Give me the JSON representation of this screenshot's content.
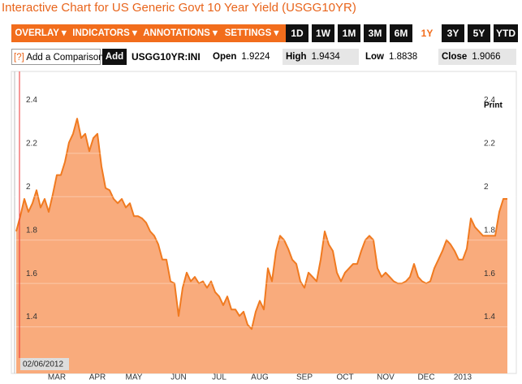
{
  "header": {
    "title": "Interactive Chart for US Generic Govt 10 Year Yield (USGG10YR)"
  },
  "toolbar": {
    "menus": [
      "OVERLAY ▾",
      "INDICATORS ▾",
      "ANNOTATIONS ▾",
      "SETTINGS ▾"
    ],
    "ranges": [
      "1D",
      "1W",
      "1M",
      "3M",
      "6M",
      "1Y",
      "3Y",
      "5Y",
      "YTD"
    ],
    "selected_range": "1Y"
  },
  "comparison": {
    "help": "[?]",
    "placeholder": "Add a Comparison",
    "button": "Add",
    "ticker": "USGG10YR:INI"
  },
  "stats": [
    {
      "label": "Open",
      "value": 1.9224
    },
    {
      "label": "High",
      "value": 1.9434
    },
    {
      "label": "Low",
      "value": 1.8838
    },
    {
      "label": "Close",
      "value": 1.9066
    }
  ],
  "chart_data": {
    "type": "area",
    "print": "Print",
    "start_date": "02/06/2012",
    "color": "#f07a20",
    "fill": "#f9ab7c",
    "grid": true,
    "ylim": [
      1.23,
      2.57
    ],
    "yticks": [
      1.4,
      1.6,
      1.8,
      2,
      2.2,
      2.4
    ],
    "categories": [
      null,
      null,
      null,
      null,
      null,
      null,
      null,
      null,
      null,
      null,
      "MAR",
      null,
      null,
      null,
      null,
      null,
      null,
      null,
      null,
      null,
      "APR",
      null,
      null,
      null,
      null,
      null,
      null,
      null,
      null,
      "MAY",
      null,
      null,
      null,
      null,
      null,
      null,
      null,
      null,
      null,
      null,
      "JUN",
      null,
      null,
      null,
      null,
      null,
      null,
      null,
      null,
      null,
      "JUL",
      null,
      null,
      null,
      null,
      null,
      null,
      null,
      null,
      null,
      "AUG",
      null,
      null,
      null,
      null,
      null,
      null,
      null,
      null,
      null,
      null,
      "SEP",
      null,
      null,
      null,
      null,
      null,
      null,
      null,
      null,
      null,
      "OCT",
      null,
      null,
      null,
      null,
      null,
      null,
      null,
      null,
      null,
      "NOV",
      null,
      null,
      null,
      null,
      null,
      null,
      null,
      null,
      null,
      "DEC",
      null,
      null,
      null,
      null,
      null,
      null,
      null,
      null,
      "2013",
      null,
      null,
      null,
      null,
      null,
      null,
      null,
      null,
      null,
      null,
      null
    ],
    "values": [
      1.84,
      1.91,
      1.99,
      1.93,
      1.97,
      2.03,
      1.95,
      1.99,
      1.93,
      2.01,
      2.1,
      2.1,
      2.16,
      2.25,
      2.29,
      2.36,
      2.27,
      2.29,
      2.21,
      2.27,
      2.29,
      2.14,
      2.04,
      2.03,
      1.99,
      1.97,
      1.99,
      1.95,
      1.97,
      1.91,
      1.91,
      1.9,
      1.88,
      1.84,
      1.82,
      1.78,
      1.71,
      1.71,
      1.61,
      1.6,
      1.45,
      1.58,
      1.65,
      1.61,
      1.63,
      1.6,
      1.61,
      1.58,
      1.61,
      1.56,
      1.54,
      1.5,
      1.54,
      1.48,
      1.48,
      1.45,
      1.47,
      1.41,
      1.39,
      1.47,
      1.52,
      1.48,
      1.67,
      1.61,
      1.75,
      1.82,
      1.8,
      1.76,
      1.71,
      1.69,
      1.61,
      1.58,
      1.65,
      1.63,
      1.61,
      1.71,
      1.84,
      1.78,
      1.75,
      1.65,
      1.61,
      1.65,
      1.67,
      1.69,
      1.69,
      1.75,
      1.8,
      1.82,
      1.8,
      1.67,
      1.63,
      1.65,
      1.63,
      1.61,
      1.6,
      1.6,
      1.61,
      1.63,
      1.69,
      1.63,
      1.61,
      1.6,
      1.61,
      1.67,
      1.71,
      1.75,
      1.8,
      1.78,
      1.75,
      1.71,
      1.71,
      1.76,
      1.9,
      1.86,
      1.84,
      1.82,
      1.82,
      1.82,
      1.82,
      1.93,
      1.99,
      1.99
    ]
  }
}
